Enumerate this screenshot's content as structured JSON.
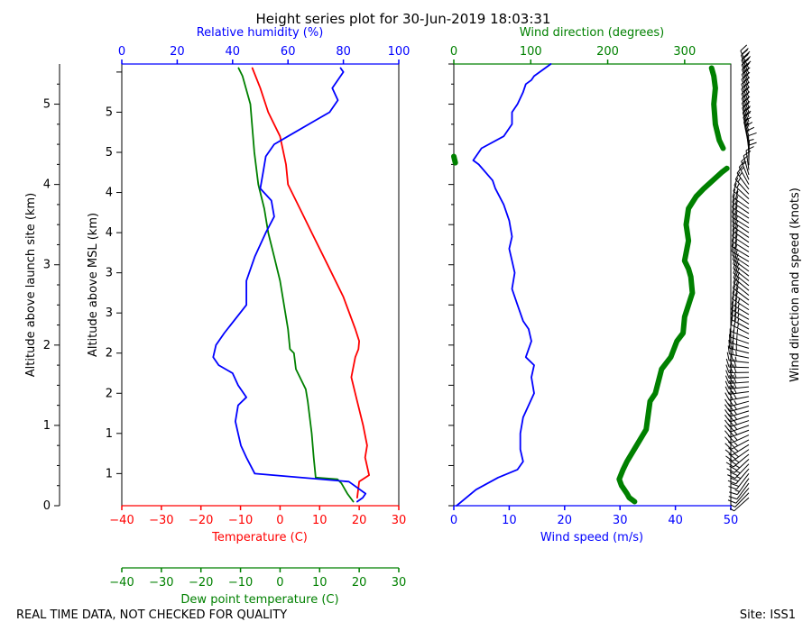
{
  "figure": {
    "title": "Height series plot for 30-Jun-2019 18:03:31",
    "footer_left": "REAL TIME DATA, NOT CHECKED FOR QUALITY",
    "footer_right": "Site: ISS1",
    "left_axis_label": "Altitude above launch site (km)",
    "msl_axis_label": "Altitude above MSL (km)",
    "barb_axis_label": "Wind direction and speed (knots)"
  },
  "colors": {
    "red": "#ff0000",
    "green": "#008000",
    "blue": "#0000ff",
    "black": "#000000"
  },
  "chart_data": [
    {
      "type": "line",
      "panel": "thermodynamic",
      "axes": {
        "temperature": {
          "label": "Temperature (C)",
          "range": [
            -40,
            30
          ],
          "ticks": [
            -40,
            -30,
            -20,
            -10,
            0,
            10,
            20,
            30
          ],
          "tick_labels": [
            "−40",
            "−30",
            "−20",
            "−10",
            "0",
            "10",
            "20",
            "30"
          ]
        },
        "dewpoint": {
          "label": "Dew point temperature (C)",
          "range": [
            -40,
            30
          ],
          "ticks": [
            -40,
            -30,
            -20,
            -10,
            0,
            10,
            20,
            30
          ],
          "tick_labels": [
            "−40",
            "−30",
            "−20",
            "−10",
            "0",
            "10",
            "20",
            "30"
          ]
        },
        "humidity": {
          "label": "Relative humidity (%)",
          "range": [
            0,
            100
          ],
          "ticks": [
            0,
            20,
            40,
            60,
            80,
            100
          ],
          "tick_labels": [
            "0",
            "20",
            "40",
            "60",
            "80",
            "100"
          ]
        },
        "altitude_launch": {
          "label": "Altitude above launch site (km)",
          "range": [
            0,
            5.5
          ],
          "ticks": [
            0,
            1,
            2,
            3,
            4,
            5
          ],
          "tick_labels": [
            "0",
            "1",
            "2",
            "3",
            "4",
            "5"
          ]
        },
        "altitude_msl": {
          "label": "Altitude above MSL (km)",
          "ticks": [
            0.5,
            1,
            1.5,
            2,
            2.5,
            3,
            3.5,
            4,
            4.5,
            5,
            5.5
          ],
          "tick_labels": [
            "1",
            "1",
            "2",
            "2",
            "3",
            "3",
            "4",
            "4",
            "5",
            "5",
            ""
          ]
        }
      },
      "series": [
        {
          "name": "Temperature",
          "unit": "C",
          "color": "red",
          "points": [
            [
              19.5,
              0.1
            ],
            [
              20,
              0.3
            ],
            [
              22.5,
              0.38
            ],
            [
              21.5,
              0.6
            ],
            [
              22,
              0.75
            ],
            [
              21,
              1.0
            ],
            [
              19.5,
              1.3
            ],
            [
              18,
              1.6
            ],
            [
              19,
              1.85
            ],
            [
              19.8,
              1.95
            ],
            [
              20,
              2.05
            ],
            [
              19,
              2.2
            ],
            [
              16,
              2.6
            ],
            [
              12,
              3.0
            ],
            [
              8,
              3.4
            ],
            [
              5,
              3.7
            ],
            [
              2,
              4.0
            ],
            [
              1.5,
              4.25
            ],
            [
              0,
              4.6
            ],
            [
              -3,
              4.9
            ],
            [
              -5,
              5.2
            ],
            [
              -7,
              5.45
            ]
          ]
        },
        {
          "name": "Dew point",
          "unit": "C",
          "color": "green",
          "points": [
            [
              18.5,
              0.05
            ],
            [
              17,
              0.15
            ],
            [
              15.5,
              0.28
            ],
            [
              14.5,
              0.33
            ],
            [
              9,
              0.35
            ],
            [
              8.5,
              0.6
            ],
            [
              8,
              0.9
            ],
            [
              7.5,
              1.1
            ],
            [
              7,
              1.3
            ],
            [
              6.5,
              1.45
            ],
            [
              4,
              1.7
            ],
            [
              3.5,
              1.9
            ],
            [
              2.5,
              1.95
            ],
            [
              2,
              2.2
            ],
            [
              1,
              2.5
            ],
            [
              0,
              2.8
            ],
            [
              -1.5,
              3.1
            ],
            [
              -3,
              3.4
            ],
            [
              -4,
              3.7
            ],
            [
              -5.5,
              4.0
            ],
            [
              -6.5,
              4.4
            ],
            [
              -7,
              4.7
            ],
            [
              -7.5,
              5.0
            ],
            [
              -9.5,
              5.35
            ],
            [
              -10.5,
              5.45
            ]
          ]
        },
        {
          "name": "Relative humidity",
          "unit": "%",
          "color": "blue",
          "points": [
            [
              85,
              0.05
            ],
            [
              87,
              0.1
            ],
            [
              88,
              0.15
            ],
            [
              82,
              0.3
            ],
            [
              48,
              0.4
            ],
            [
              45,
              0.6
            ],
            [
              43,
              0.75
            ],
            [
              42,
              0.9
            ],
            [
              41,
              1.05
            ],
            [
              42,
              1.25
            ],
            [
              45,
              1.35
            ],
            [
              42,
              1.5
            ],
            [
              40,
              1.65
            ],
            [
              35,
              1.75
            ],
            [
              33,
              1.85
            ],
            [
              34,
              2.0
            ],
            [
              37,
              2.15
            ],
            [
              45,
              2.5
            ],
            [
              45,
              2.8
            ],
            [
              48,
              3.1
            ],
            [
              52,
              3.4
            ],
            [
              55,
              3.6
            ],
            [
              54,
              3.8
            ],
            [
              50,
              3.95
            ],
            [
              51,
              4.15
            ],
            [
              52,
              4.35
            ],
            [
              55,
              4.5
            ],
            [
              60,
              4.6
            ],
            [
              70,
              4.8
            ],
            [
              75,
              4.9
            ],
            [
              78,
              5.05
            ],
            [
              76,
              5.2
            ],
            [
              80,
              5.4
            ],
            [
              79,
              5.45
            ]
          ]
        }
      ]
    },
    {
      "type": "line",
      "panel": "wind",
      "axes": {
        "wind_speed": {
          "label": "Wind speed (m/s)",
          "range": [
            0,
            50
          ],
          "ticks": [
            0,
            10,
            20,
            30,
            40,
            50
          ],
          "tick_labels": [
            "0",
            "10",
            "20",
            "30",
            "40",
            "50"
          ]
        },
        "wind_direction": {
          "label": "Wind direction (degrees)",
          "range": [
            0,
            360
          ],
          "ticks": [
            0,
            100,
            200,
            300
          ],
          "tick_labels": [
            "0",
            "100",
            "200",
            "300"
          ]
        }
      },
      "series": [
        {
          "name": "Wind speed",
          "unit": "m/s",
          "color": "blue",
          "points": [
            [
              0.5,
              0.0
            ],
            [
              4,
              0.2
            ],
            [
              8,
              0.35
            ],
            [
              11.5,
              0.45
            ],
            [
              12.5,
              0.55
            ],
            [
              12,
              0.7
            ],
            [
              12,
              0.9
            ],
            [
              12.5,
              1.1
            ],
            [
              13.5,
              1.25
            ],
            [
              14.5,
              1.4
            ],
            [
              14,
              1.6
            ],
            [
              14.5,
              1.75
            ],
            [
              13,
              1.85
            ],
            [
              14,
              2.05
            ],
            [
              13.5,
              2.2
            ],
            [
              12.5,
              2.3
            ],
            [
              11.5,
              2.5
            ],
            [
              10.5,
              2.7
            ],
            [
              11,
              2.9
            ],
            [
              10.5,
              3.05
            ],
            [
              10,
              3.2
            ],
            [
              10.5,
              3.35
            ],
            [
              10,
              3.55
            ],
            [
              9,
              3.75
            ],
            [
              7.5,
              3.95
            ],
            [
              7,
              4.05
            ],
            [
              4.5,
              4.25
            ],
            [
              3.5,
              4.3
            ],
            [
              5,
              4.45
            ],
            [
              9,
              4.6
            ],
            [
              10.5,
              4.75
            ],
            [
              10.5,
              4.9
            ],
            [
              11.5,
              5.0
            ],
            [
              12.5,
              5.15
            ],
            [
              13,
              5.25
            ],
            [
              14,
              5.3
            ],
            [
              14.5,
              5.35
            ],
            [
              16.5,
              5.45
            ],
            [
              17.5,
              5.5
            ]
          ]
        },
        {
          "name": "Wind direction",
          "unit": "degrees",
          "color": "green",
          "points": [
            [
              235,
              0.05
            ],
            [
              228,
              0.1
            ],
            [
              225,
              0.15
            ],
            [
              218,
              0.25
            ],
            [
              215,
              0.33
            ],
            [
              220,
              0.45
            ],
            [
              225,
              0.55
            ],
            [
              250,
              0.95
            ],
            [
              255,
              1.3
            ],
            [
              262,
              1.4
            ],
            [
              270,
              1.7
            ],
            [
              282,
              1.85
            ],
            [
              290,
              2.05
            ],
            [
              298,
              2.15
            ],
            [
              300,
              2.35
            ],
            [
              305,
              2.5
            ],
            [
              310,
              2.65
            ],
            [
              308,
              2.85
            ],
            [
              305,
              2.95
            ],
            [
              300,
              3.05
            ],
            [
              305,
              3.3
            ],
            [
              302,
              3.5
            ],
            [
              305,
              3.7
            ],
            [
              315,
              3.85
            ],
            [
              325,
              3.95
            ],
            [
              348,
              4.15
            ],
            [
              355,
              4.2
            ],
            [
              2,
              4.27
            ],
            [
              0,
              4.35
            ],
            [
              350,
              4.45
            ],
            [
              345,
              4.55
            ],
            [
              340,
              4.75
            ],
            [
              338,
              5.0
            ],
            [
              340,
              5.2
            ],
            [
              338,
              5.35
            ],
            [
              335,
              5.45
            ]
          ]
        }
      ]
    }
  ]
}
